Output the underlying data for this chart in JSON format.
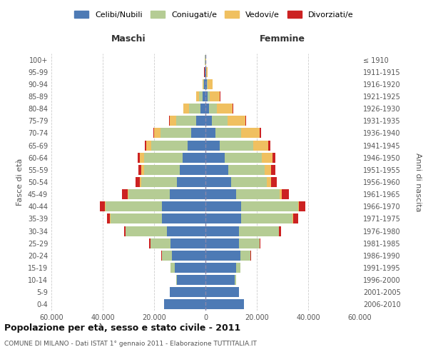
{
  "age_groups": [
    "0-4",
    "5-9",
    "10-14",
    "15-19",
    "20-24",
    "25-29",
    "30-34",
    "35-39",
    "40-44",
    "45-49",
    "50-54",
    "55-59",
    "60-64",
    "65-69",
    "70-74",
    "75-79",
    "80-84",
    "85-89",
    "90-94",
    "95-99",
    "100+"
  ],
  "birth_years": [
    "2006-2010",
    "2001-2005",
    "1996-2000",
    "1991-1995",
    "1986-1990",
    "1981-1985",
    "1976-1980",
    "1971-1975",
    "1966-1970",
    "1961-1965",
    "1956-1960",
    "1951-1955",
    "1946-1950",
    "1941-1945",
    "1936-1940",
    "1931-1935",
    "1926-1930",
    "1921-1925",
    "1916-1920",
    "1911-1915",
    "≤ 1910"
  ],
  "colors": {
    "celibi": "#4d7ab5",
    "coniugati": "#b5cc94",
    "vedovi": "#f0c060",
    "divorziati": "#cc2222"
  },
  "maschi": {
    "celibi": [
      16000,
      14000,
      11000,
      12000,
      13000,
      13500,
      15000,
      17000,
      17000,
      14000,
      11000,
      10000,
      9000,
      7000,
      5500,
      3500,
      2000,
      1000,
      500,
      200,
      100
    ],
    "coniugati": [
      0,
      0,
      500,
      1500,
      4000,
      8000,
      16000,
      20000,
      22000,
      16000,
      14000,
      14000,
      15000,
      14000,
      12000,
      8000,
      4500,
      1500,
      300,
      100,
      50
    ],
    "vedovi": [
      0,
      0,
      0,
      5,
      10,
      20,
      50,
      100,
      200,
      400,
      600,
      1000,
      1500,
      2000,
      2500,
      2500,
      2000,
      1000,
      400,
      100,
      50
    ],
    "divorziati": [
      0,
      0,
      10,
      50,
      100,
      300,
      600,
      1200,
      1800,
      2000,
      1500,
      1200,
      800,
      500,
      400,
      300,
      200,
      100,
      50,
      20,
      10
    ]
  },
  "femmine": {
    "celibi": [
      15000,
      13000,
      11500,
      12000,
      13500,
      13000,
      13000,
      14000,
      14000,
      12000,
      10000,
      9000,
      7500,
      5500,
      4000,
      2500,
      1500,
      800,
      500,
      200,
      100
    ],
    "coniugati": [
      0,
      0,
      500,
      1500,
      4000,
      8000,
      15500,
      20000,
      22000,
      17000,
      14000,
      14000,
      14500,
      13000,
      10000,
      6000,
      3000,
      800,
      200,
      80,
      30
    ],
    "vedovi": [
      0,
      0,
      0,
      5,
      20,
      50,
      100,
      200,
      400,
      800,
      1500,
      2500,
      4000,
      6000,
      7000,
      7000,
      6000,
      4000,
      2000,
      600,
      200
    ],
    "divorziati": [
      0,
      0,
      10,
      50,
      150,
      400,
      900,
      1800,
      2500,
      2800,
      2200,
      1800,
      1200,
      800,
      600,
      400,
      200,
      100,
      50,
      20,
      10
    ]
  },
  "xlim": 60000,
  "xticks": [
    -60000,
    -40000,
    -20000,
    0,
    20000,
    40000,
    60000
  ],
  "xticklabels": [
    "60.000",
    "40.000",
    "20.000",
    "0",
    "20.000",
    "40.000",
    "60.000"
  ],
  "title": "Popolazione per età, sesso e stato civile - 2011",
  "subtitle": "COMUNE DI MILANO - Dati ISTAT 1° gennaio 2011 - Elaborazione TUTTITALIA.IT",
  "ylabel_left": "Fasce di età",
  "ylabel_right": "Anni di nascita",
  "legend_items": [
    "Celibi/Nubili",
    "Coniugati/e",
    "Vedovi/e",
    "Divorziati/e"
  ],
  "legend_colors": [
    "#4d7ab5",
    "#b5cc94",
    "#f0c060",
    "#cc2222"
  ],
  "background_color": "#FFFFFF",
  "grid_color": "#CCCCCC"
}
